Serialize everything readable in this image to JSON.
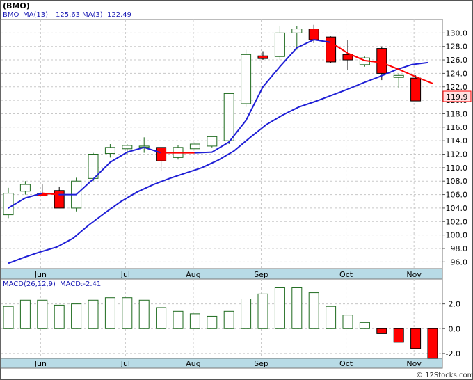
{
  "title": "(BMO)",
  "watermark": "© 12Stocks.com",
  "colors": {
    "up_fill": "#ffffff",
    "up_stroke": "#1f6b1f",
    "down_fill": "#ff0000",
    "down_stroke": "#000000",
    "ma_fast": "#1f1fd6",
    "ma_slow": "#1f1fd6",
    "ma_recent": "#ff0000",
    "macd_up_stroke": "#1f6b1f",
    "macd_down_fill": "#ff0000",
    "band": "#b8dbe6",
    "price_tag_bg": "#ffe0e0",
    "price_tag_border": "#ff0000",
    "grid": "#c8c8c8"
  },
  "legend": {
    "symbol": "BMO",
    "ma13_label": "MA(13)",
    "ma13_value": "125.63",
    "ma3_label": "MA(3)",
    "ma3_value": "122.49"
  },
  "macd_legend": {
    "label": "MACD(26,12,9)",
    "value_label": "MACD:-2.41"
  },
  "last_price": "119.9",
  "chart_data": [
    {
      "type": "candlestick",
      "title": "(BMO)",
      "x_labels": [
        "Jun",
        "Jul",
        "Aug",
        "Sep",
        "Oct",
        "Nov"
      ],
      "x_label_index": [
        1,
        6,
        10,
        14,
        19,
        23
      ],
      "ylim": [
        95,
        132
      ],
      "y_ticks": [
        96.0,
        98.0,
        100.0,
        102.0,
        104.0,
        106.0,
        108.0,
        110.0,
        112.0,
        114.0,
        116.0,
        118.0,
        120.0,
        122.0,
        124.0,
        126.0,
        128.0,
        130.0
      ],
      "candles": [
        {
          "o": 103.0,
          "h": 107.0,
          "l": 102.5,
          "c": 106.2
        },
        {
          "o": 106.5,
          "h": 108.0,
          "l": 106.0,
          "c": 107.5
        },
        {
          "o": 106.2,
          "h": 107.5,
          "l": 105.8,
          "c": 105.8
        },
        {
          "o": 106.6,
          "h": 107.2,
          "l": 104.0,
          "c": 104.0
        },
        {
          "o": 104.0,
          "h": 108.5,
          "l": 103.5,
          "c": 108.0
        },
        {
          "o": 108.4,
          "h": 112.2,
          "l": 108.0,
          "c": 112.0
        },
        {
          "o": 112.1,
          "h": 113.5,
          "l": 111.5,
          "c": 113.0
        },
        {
          "o": 112.8,
          "h": 113.5,
          "l": 112.0,
          "c": 113.3
        },
        {
          "o": 113.2,
          "h": 114.5,
          "l": 112.2,
          "c": 113.2
        },
        {
          "o": 113.0,
          "h": 113.0,
          "l": 109.5,
          "c": 111.0
        },
        {
          "o": 111.5,
          "h": 113.3,
          "l": 111.2,
          "c": 113.0
        },
        {
          "o": 112.8,
          "h": 113.8,
          "l": 112.5,
          "c": 113.5
        },
        {
          "o": 113.2,
          "h": 114.7,
          "l": 113.0,
          "c": 114.6
        },
        {
          "o": 114.0,
          "h": 121.0,
          "l": 113.5,
          "c": 121.0
        },
        {
          "o": 119.5,
          "h": 127.5,
          "l": 119.0,
          "c": 126.8
        },
        {
          "o": 126.6,
          "h": 127.3,
          "l": 126.0,
          "c": 126.2
        },
        {
          "o": 126.5,
          "h": 131.0,
          "l": 126.0,
          "c": 130.0
        },
        {
          "o": 130.0,
          "h": 131.0,
          "l": 127.5,
          "c": 130.6
        },
        {
          "o": 130.6,
          "h": 131.2,
          "l": 128.5,
          "c": 129.0
        },
        {
          "o": 129.4,
          "h": 129.5,
          "l": 125.5,
          "c": 125.7
        },
        {
          "o": 126.8,
          "h": 129.0,
          "l": 124.5,
          "c": 126.0
        },
        {
          "o": 125.3,
          "h": 126.5,
          "l": 125.0,
          "c": 126.3
        },
        {
          "o": 127.7,
          "h": 128.0,
          "l": 123.0,
          "c": 124.0
        },
        {
          "o": 123.4,
          "h": 124.0,
          "l": 121.8,
          "c": 123.7
        },
        {
          "o": 123.3,
          "h": 123.7,
          "l": 119.9,
          "c": 119.9
        }
      ],
      "series": [
        {
          "name": "MA(13)",
          "values": [
            95.8,
            96.7,
            97.5,
            98.2,
            99.5,
            101.5,
            103.3,
            105.0,
            106.4,
            107.5,
            108.4,
            109.2,
            110.0,
            111.1,
            112.5,
            114.5,
            116.4,
            117.8,
            119.0,
            119.8,
            120.7,
            121.6,
            122.6,
            123.5,
            124.5,
            125.3,
            125.6
          ]
        },
        {
          "name": "MA(3)",
          "values": [
            104.0,
            105.5,
            106.2,
            106.0,
            106.0,
            108.3,
            110.8,
            112.3,
            113.0,
            112.2,
            112.2,
            112.2,
            112.3,
            113.8,
            117.0,
            122.0,
            125.0,
            127.8,
            129.0,
            128.6,
            127.0,
            125.9,
            125.6,
            124.6,
            123.5,
            122.5
          ]
        },
        {
          "name": "MACD(26,12,9)",
          "values": [
            1.8,
            2.3,
            2.3,
            1.9,
            2.0,
            2.3,
            2.5,
            2.5,
            2.3,
            1.7,
            1.4,
            1.2,
            1.0,
            1.4,
            2.4,
            2.8,
            3.3,
            3.3,
            2.9,
            1.8,
            1.1,
            0.5,
            -0.4,
            -1.1,
            -1.6,
            -2.4
          ]
        }
      ]
    },
    {
      "type": "bar",
      "title": "MACD(26,12,9)",
      "x_labels": [
        "Jun",
        "Jul",
        "Aug",
        "Sep",
        "Oct",
        "Nov"
      ],
      "ylim": [
        -2.4,
        4.0
      ],
      "y_ticks": [
        -2.0,
        0.0,
        2.0
      ]
    }
  ]
}
